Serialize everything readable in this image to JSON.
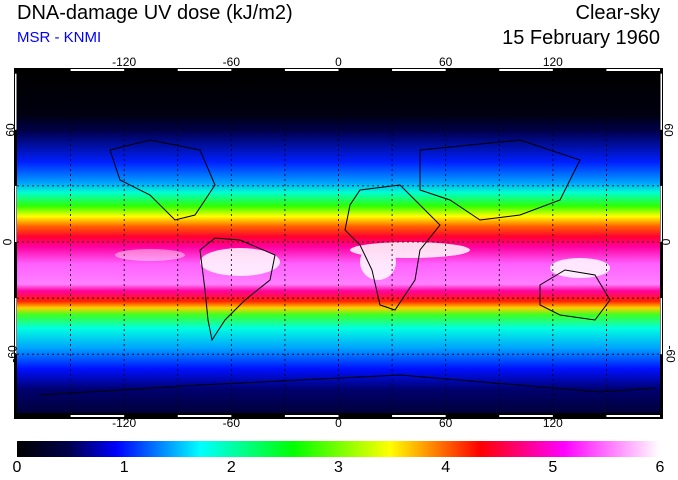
{
  "header": {
    "title": "DNA-damage UV dose (kJ/m2)",
    "organization": "MSR - KNMI",
    "condition": "Clear-sky",
    "date": "15 February 1960"
  },
  "map": {
    "lon_labels": [
      "-120",
      "-60",
      "0",
      "60",
      "120"
    ],
    "lon_values": [
      -120,
      -60,
      0,
      60,
      120
    ],
    "lat_labels": [
      "60",
      "0",
      "-60"
    ],
    "lat_values": [
      60,
      0,
      -60
    ]
  },
  "colorbar": {
    "labels": [
      "0",
      "1",
      "2",
      "3",
      "4",
      "5",
      "6"
    ],
    "min": 0,
    "max": 6,
    "colors": [
      "#000000",
      "#00004a",
      "#0000ff",
      "#00ffff",
      "#00ff00",
      "#ffff00",
      "#ff0000",
      "#ff00ff",
      "#ffffff"
    ]
  }
}
